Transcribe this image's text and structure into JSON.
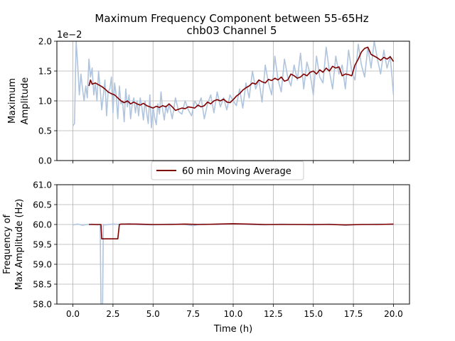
{
  "title_line1": "Maximum Frequency Component between 55-65Hz",
  "title_line2": "chb03 Channel 5",
  "colors": {
    "raw": "#b0c4de",
    "avg": "#800000",
    "grid": "#b0b0b0"
  },
  "legend": {
    "label": "60 min Moving Average"
  },
  "chart_data": [
    {
      "type": "line",
      "ylabel_line1": "Maximum",
      "ylabel_line2": "Amplitude",
      "offset_text": "1e−2",
      "xlim": [
        -1,
        21
      ],
      "ylim": [
        0.0,
        2.0
      ],
      "xticks": [
        0.0,
        2.5,
        5.0,
        7.5,
        10.0,
        12.5,
        15.0,
        17.5,
        20.0
      ],
      "yticks": [
        0.0,
        0.5,
        1.0,
        1.5,
        2.0
      ],
      "ytick_labels": [
        "0.0",
        "0.5",
        "1.0",
        "1.5",
        "2.0"
      ],
      "grid": true,
      "series": [
        {
          "name": "",
          "x": [
            0.0,
            0.1,
            0.2,
            0.3,
            0.4,
            0.5,
            0.6,
            0.7,
            0.8,
            0.9,
            1.0,
            1.1,
            1.2,
            1.3,
            1.4,
            1.5,
            1.6,
            1.7,
            1.8,
            1.9,
            2.0,
            2.1,
            2.2,
            2.3,
            2.4,
            2.5,
            2.6,
            2.7,
            2.8,
            2.9,
            3.0,
            3.1,
            3.2,
            3.3,
            3.4,
            3.5,
            3.6,
            3.7,
            3.8,
            3.9,
            4.0,
            4.1,
            4.2,
            4.3,
            4.4,
            4.5,
            4.6,
            4.7,
            4.8,
            4.9,
            5.0,
            5.1,
            5.2,
            5.3,
            5.4,
            5.5,
            5.6,
            5.7,
            5.8,
            5.9,
            6.0,
            6.2,
            6.4,
            6.6,
            6.8,
            7.0,
            7.2,
            7.4,
            7.6,
            7.8,
            8.0,
            8.2,
            8.4,
            8.6,
            8.8,
            9.0,
            9.2,
            9.4,
            9.6,
            9.8,
            10.0,
            10.2,
            10.4,
            10.6,
            10.8,
            11.0,
            11.2,
            11.4,
            11.6,
            11.8,
            12.0,
            12.2,
            12.4,
            12.6,
            12.8,
            13.0,
            13.2,
            13.4,
            13.6,
            13.8,
            14.0,
            14.2,
            14.4,
            14.6,
            14.8,
            15.0,
            15.2,
            15.4,
            15.6,
            15.8,
            16.0,
            16.2,
            16.4,
            16.6,
            16.8,
            17.0,
            17.2,
            17.4,
            17.6,
            17.8,
            18.0,
            18.2,
            18.4,
            18.6,
            18.8,
            19.0,
            19.2,
            19.4,
            19.6,
            19.8,
            20.0
          ],
          "values": [
            0.58,
            0.62,
            2.0,
            1.6,
            1.1,
            1.45,
            1.2,
            1.0,
            1.25,
            1.05,
            1.7,
            1.4,
            1.55,
            1.1,
            1.3,
            1.0,
            1.5,
            1.2,
            0.85,
            1.1,
            1.35,
            0.75,
            1.15,
            1.2,
            1.4,
            0.8,
            1.3,
            1.1,
            0.7,
            1.25,
            0.95,
            1.0,
            0.65,
            1.2,
            0.9,
            1.1,
            0.7,
            0.95,
            1.05,
            0.8,
            1.0,
            0.75,
            1.05,
            0.9,
            0.68,
            1.0,
            0.8,
            0.62,
            1.1,
            0.55,
            0.9,
            0.72,
            0.6,
            0.95,
            0.78,
            1.15,
            0.85,
            0.68,
            0.92,
            0.8,
            0.95,
            0.7,
            1.05,
            0.82,
            0.78,
            1.0,
            0.85,
            0.75,
            1.0,
            0.9,
            1.05,
            0.7,
            0.95,
            1.1,
            0.8,
            1.15,
            0.9,
            1.05,
            0.85,
            1.1,
            1.0,
            0.92,
            1.2,
            0.88,
            1.3,
            1.05,
            1.5,
            1.2,
            1.35,
            0.98,
            1.6,
            1.3,
            1.1,
            1.75,
            1.35,
            1.15,
            1.7,
            1.4,
            1.25,
            1.6,
            1.35,
            1.8,
            1.2,
            1.65,
            1.45,
            1.1,
            1.75,
            1.4,
            1.3,
            1.9,
            1.5,
            1.2,
            1.75,
            1.45,
            1.6,
            1.2,
            1.85,
            1.5,
            1.35,
            1.95,
            1.6,
            1.4,
            1.9,
            1.55,
            2.0,
            1.7,
            1.45,
            1.85,
            1.55,
            1.75,
            1.1
          ]
        },
        {
          "name": "60 min Moving Average",
          "x": [
            1.0,
            1.1,
            1.2,
            1.4,
            1.6,
            1.8,
            2.0,
            2.2,
            2.4,
            2.6,
            2.8,
            3.0,
            3.2,
            3.4,
            3.6,
            3.8,
            4.0,
            4.2,
            4.4,
            4.6,
            4.8,
            5.0,
            5.2,
            5.4,
            5.6,
            5.8,
            6.0,
            6.2,
            6.4,
            6.6,
            6.8,
            7.0,
            7.2,
            7.4,
            7.6,
            7.8,
            8.0,
            8.2,
            8.4,
            8.6,
            8.8,
            9.0,
            9.2,
            9.4,
            9.6,
            9.8,
            10.0,
            10.2,
            10.4,
            10.6,
            10.8,
            11.0,
            11.2,
            11.4,
            11.6,
            11.8,
            12.0,
            12.2,
            12.4,
            12.6,
            12.8,
            13.0,
            13.2,
            13.4,
            13.6,
            13.8,
            14.0,
            14.2,
            14.4,
            14.6,
            14.8,
            15.0,
            15.2,
            15.4,
            15.6,
            15.8,
            16.0,
            16.2,
            16.4,
            16.6,
            16.8,
            17.0,
            17.2,
            17.4,
            17.6,
            17.8,
            18.0,
            18.2,
            18.4,
            18.6,
            18.8,
            19.0,
            19.2,
            19.4,
            19.6,
            19.8,
            20.0
          ],
          "values": [
            1.25,
            1.35,
            1.28,
            1.3,
            1.27,
            1.24,
            1.2,
            1.15,
            1.12,
            1.1,
            1.05,
            1.0,
            0.97,
            1.0,
            0.95,
            0.98,
            0.95,
            0.93,
            0.96,
            0.92,
            0.9,
            0.88,
            0.91,
            0.89,
            0.92,
            0.9,
            0.95,
            0.9,
            0.84,
            0.86,
            0.88,
            0.87,
            0.9,
            0.89,
            0.88,
            0.93,
            0.9,
            0.92,
            0.98,
            0.95,
            1.0,
            1.02,
            1.0,
            1.03,
            0.98,
            0.97,
            1.02,
            1.08,
            1.12,
            1.18,
            1.22,
            1.25,
            1.3,
            1.28,
            1.35,
            1.32,
            1.3,
            1.36,
            1.34,
            1.38,
            1.35,
            1.4,
            1.33,
            1.35,
            1.45,
            1.42,
            1.38,
            1.4,
            1.45,
            1.42,
            1.48,
            1.5,
            1.45,
            1.52,
            1.48,
            1.55,
            1.5,
            1.58,
            1.55,
            1.57,
            1.42,
            1.45,
            1.44,
            1.42,
            1.6,
            1.7,
            1.82,
            1.88,
            1.9,
            1.78,
            1.75,
            1.72,
            1.68,
            1.73,
            1.7,
            1.74,
            1.66
          ]
        }
      ]
    },
    {
      "type": "line",
      "ylabel_line1": "Frequency of",
      "ylabel_line2": "Max Amplitude (Hz)",
      "xlabel": "Time (h)",
      "xlim": [
        -1,
        21
      ],
      "ylim": [
        58.0,
        61.0
      ],
      "xticks": [
        0.0,
        2.5,
        5.0,
        7.5,
        10.0,
        12.5,
        15.0,
        17.5,
        20.0
      ],
      "xtick_labels": [
        "0.0",
        "2.5",
        "5.0",
        "7.5",
        "10.0",
        "12.5",
        "15.0",
        "17.5",
        "20.0"
      ],
      "yticks": [
        58.0,
        58.5,
        59.0,
        59.5,
        60.0,
        60.5,
        61.0
      ],
      "ytick_labels": [
        "58.0",
        "58.5",
        "59.0",
        "59.5",
        "60.0",
        "60.5",
        "61.0"
      ],
      "grid": true,
      "series": [
        {
          "name": "",
          "x": [
            0.0,
            0.3,
            0.6,
            0.9,
            1.2,
            1.5,
            1.7,
            1.75,
            1.8,
            1.85,
            1.9,
            2.0,
            2.5,
            3.0,
            3.5,
            4.0,
            5.0,
            6.0,
            7.0,
            7.5,
            8.0,
            9.0,
            10.0,
            11.0,
            12.0,
            13.0,
            14.0,
            15.0,
            16.0,
            17.0,
            18.0,
            19.0,
            20.0
          ],
          "values": [
            59.99,
            60.01,
            59.98,
            60.0,
            60.01,
            59.99,
            60.0,
            58.0,
            57.5,
            58.0,
            60.0,
            59.99,
            60.01,
            60.0,
            60.02,
            60.0,
            59.99,
            60.01,
            60.0,
            59.97,
            60.01,
            60.0,
            60.02,
            60.0,
            59.99,
            60.01,
            60.0,
            59.99,
            60.01,
            59.98,
            60.0,
            60.01,
            60.0
          ]
        },
        {
          "name": "60 min Moving Average",
          "x": [
            1.0,
            1.5,
            1.75,
            1.8,
            2.0,
            2.5,
            2.8,
            2.9,
            3.0,
            4.0,
            5.0,
            6.0,
            7.0,
            8.0,
            9.0,
            10.0,
            11.0,
            12.0,
            13.0,
            14.0,
            15.0,
            16.0,
            17.0,
            18.0,
            19.0,
            20.0
          ],
          "values": [
            60.0,
            60.0,
            60.0,
            59.64,
            59.64,
            59.64,
            59.64,
            60.0,
            60.01,
            60.01,
            60.0,
            60.0,
            60.01,
            60.0,
            60.01,
            60.02,
            60.01,
            60.0,
            60.0,
            60.0,
            60.0,
            60.0,
            59.99,
            60.0,
            60.0,
            60.01
          ]
        }
      ]
    }
  ]
}
